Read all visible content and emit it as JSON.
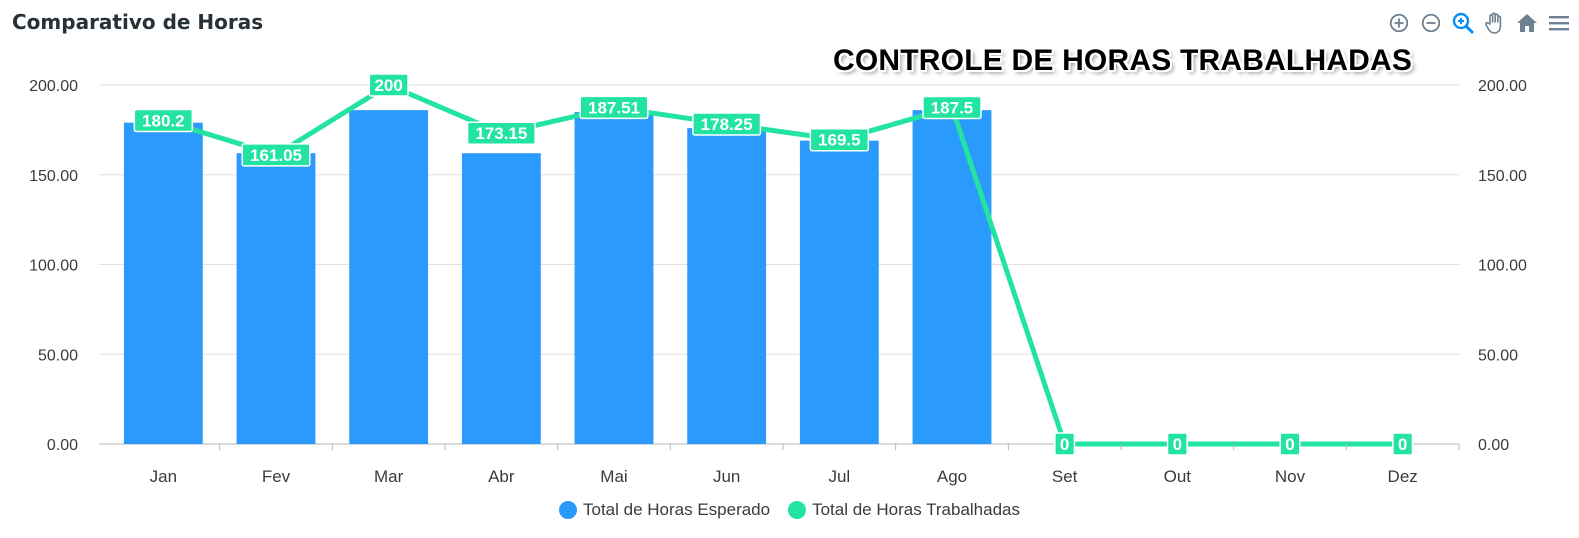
{
  "header": {
    "title": "Comparativo de Horas"
  },
  "overlay": {
    "text": "CONTROLE DE HORAS TRABALHADAS"
  },
  "toolbar": {
    "icons": [
      "zoom-in-icon",
      "zoom-out-icon",
      "magnifier-icon",
      "pan-hand-icon",
      "home-icon",
      "menu-icon"
    ]
  },
  "colors": {
    "bars": "#2A9BFC",
    "line": "#22E3A0",
    "grid": "#e0e0e0",
    "axis_text": "#373d3f",
    "toolbar": "#6E8192"
  },
  "chart_data": {
    "type": "bar+line",
    "title": "Comparativo de Horas",
    "categories": [
      "Jan",
      "Fev",
      "Mar",
      "Abr",
      "Mai",
      "Jun",
      "Jul",
      "Ago",
      "Set",
      "Out",
      "Nov",
      "Dez"
    ],
    "series": [
      {
        "name": "Total de Horas Esperado",
        "type": "bar",
        "values": [
          179,
          162,
          186,
          162,
          185,
          176,
          169,
          186,
          null,
          null,
          null,
          null
        ]
      },
      {
        "name": "Total de Horas Trabalhadas",
        "type": "line",
        "values": [
          180.2,
          161.05,
          200,
          173.15,
          187.51,
          178.25,
          169.5,
          187.5,
          0,
          0,
          0,
          0
        ],
        "labels": [
          "180.2",
          "161.05",
          "200",
          "173.15",
          "187.51",
          "178.25",
          "169.5",
          "187.5",
          "0",
          "0",
          "0",
          "0"
        ]
      }
    ],
    "y_ticks": [
      "0.00",
      "50.00",
      "100.00",
      "150.00",
      "200.00"
    ],
    "ylim": [
      0,
      200
    ],
    "y2_ticks": [
      "0.00",
      "50.00",
      "100.00",
      "150.00",
      "200.00"
    ],
    "grid": true,
    "legend": "bottom-center"
  }
}
